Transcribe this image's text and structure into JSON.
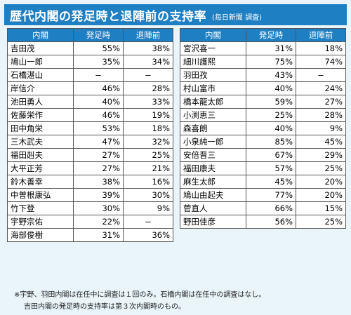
{
  "title": "歴代内閣の発足時と退陣前の支持率",
  "source": "(毎日新聞 調査)",
  "headers": [
    "内閣",
    "発足時",
    "退陣前"
  ],
  "left_rows": [
    [
      "吉田茂",
      "55%",
      "38%"
    ],
    [
      "鳩山一郎",
      "35%",
      "34%"
    ],
    [
      "石橋湛山",
      "−",
      "−"
    ],
    [
      "岸信介",
      "46%",
      "28%"
    ],
    [
      "池田勇人",
      "40%",
      "33%"
    ],
    [
      "佐藤栄作",
      "46%",
      "19%"
    ],
    [
      "田中角栄",
      "53%",
      "18%"
    ],
    [
      "三木武夫",
      "47%",
      "32%"
    ],
    [
      "福田赳夫",
      "27%",
      "25%"
    ],
    [
      "大平正芳",
      "27%",
      "21%"
    ],
    [
      "鈴木善幸",
      "38%",
      "16%"
    ],
    [
      "中曽根康弘",
      "39%",
      "30%"
    ],
    [
      "竹下登",
      "30%",
      "9%"
    ],
    [
      "宇野宗佑",
      "22%",
      "−"
    ],
    [
      "海部俊樹",
      "31%",
      "36%"
    ]
  ],
  "right_rows": [
    [
      "宮沢喜一",
      "31%",
      "18%"
    ],
    [
      "細川護熙",
      "75%",
      "74%"
    ],
    [
      "羽田孜",
      "43%",
      "−"
    ],
    [
      "村山富市",
      "40%",
      "24%"
    ],
    [
      "橋本龍太郎",
      "59%",
      "27%"
    ],
    [
      "小渕恵三",
      "25%",
      "28%"
    ],
    [
      "森喜朗",
      "40%",
      "9%"
    ],
    [
      "小泉純一郎",
      "85%",
      "45%"
    ],
    [
      "安倍晋三",
      "67%",
      "29%"
    ],
    [
      "福田康夫",
      "57%",
      "25%"
    ],
    [
      "麻生太郎",
      "45%",
      "20%"
    ],
    [
      "鳩山由起夫",
      "77%",
      "20%"
    ],
    [
      "菅直人",
      "66%",
      "15%"
    ],
    [
      "野田佳彦",
      "56%",
      "25%"
    ]
  ],
  "notes": [
    "※宇野、羽田内閣は在任中に調査は１回のみ。石橋内閣は在任中の調査はなし。",
    "吉田内閣の発足時の支持率は第３次内閣時のもの。"
  ]
}
